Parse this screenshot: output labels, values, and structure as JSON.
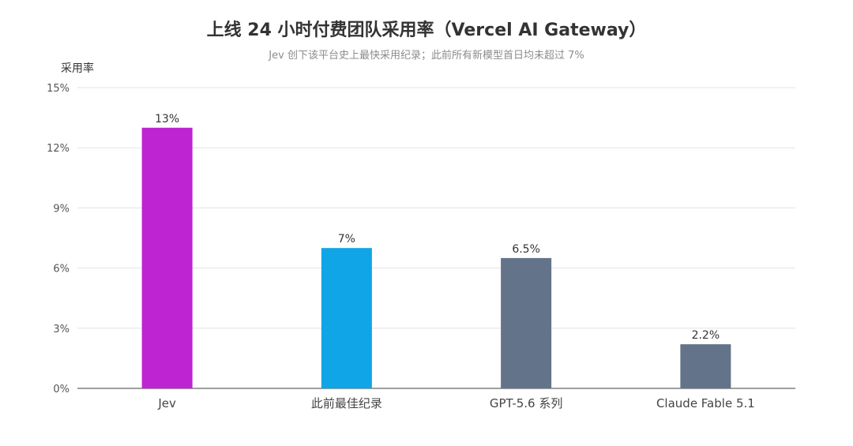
{
  "chart_data": {
    "type": "bar",
    "title": "上线 24 小时付费团队采用率（Vercel AI Gateway）",
    "subtitle": "Jev 创下该平台史上最快采用纪录；此前所有新模型首日均未超过 7%",
    "ylabel": "采用率",
    "xlabel": "",
    "ylim": [
      0,
      15
    ],
    "yticks": [
      0,
      3,
      6,
      9,
      12,
      15
    ],
    "ytick_labels": [
      "0%",
      "3%",
      "6%",
      "9%",
      "12%",
      "15%"
    ],
    "grid": true,
    "legend": "none",
    "categories": [
      "Jev",
      "此前最佳纪录",
      "GPT-5.6 系列",
      "Claude Fable 5.1"
    ],
    "values": [
      13,
      7,
      6.5,
      2.2
    ],
    "value_labels": [
      "13%",
      "7%",
      "6.5%",
      "2.2%"
    ],
    "colors": [
      "#bf24d3",
      "#0fa5e6",
      "#637389",
      "#637389"
    ]
  }
}
